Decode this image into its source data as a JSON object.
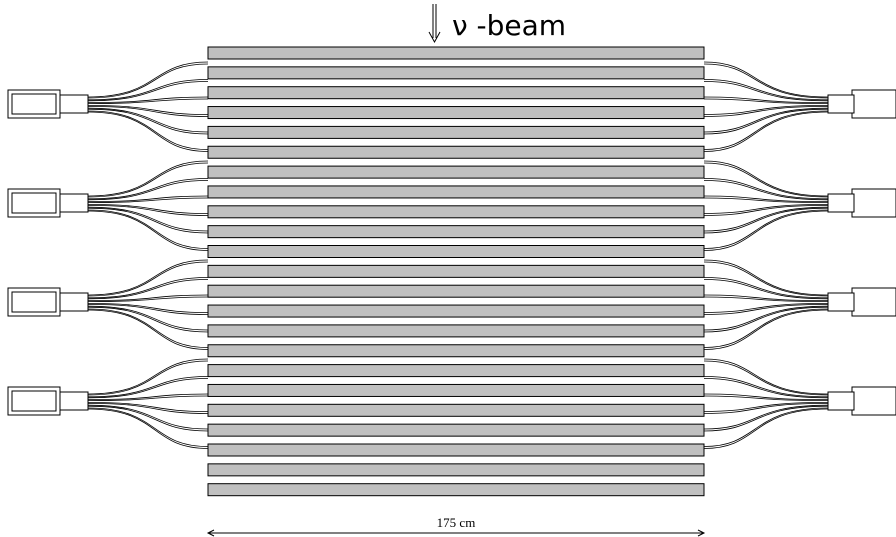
{
  "labels": {
    "beam": "ν -beam",
    "scale": "175 cm"
  }
}
